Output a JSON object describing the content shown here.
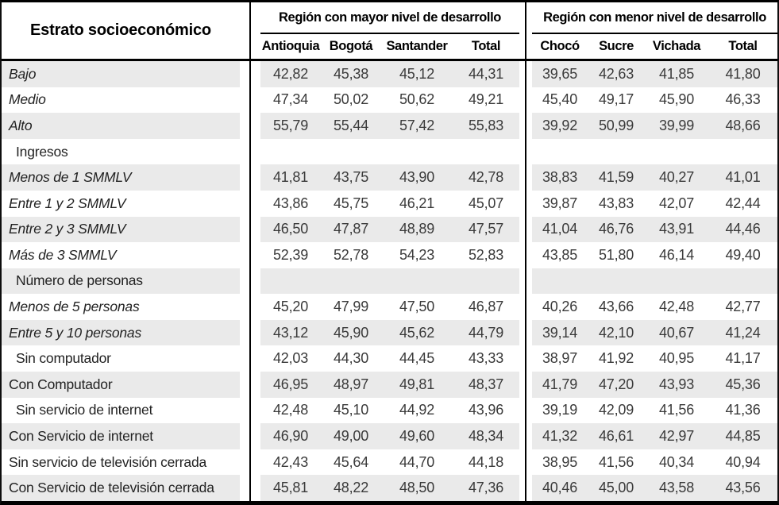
{
  "chart_data": {
    "type": "table",
    "corner_header": "Estrato socioeconómico",
    "groups": [
      {
        "label": "Región con mayor nivel de desarrollo",
        "columns": [
          "Antioquia",
          "Bogotá",
          "Santander",
          "Total"
        ]
      },
      {
        "label": "Región con menor nivel de desarrollo",
        "columns": [
          "Chocó",
          "Sucre",
          "Vichada",
          "Total"
        ]
      }
    ],
    "rows": [
      {
        "label": "Bajo",
        "italic": true,
        "section": false,
        "indent": false,
        "values": [
          "42,82",
          "45,38",
          "45,12",
          "44,31",
          "39,65",
          "42,63",
          "41,85",
          "41,80"
        ]
      },
      {
        "label": "Medio",
        "italic": true,
        "section": false,
        "indent": false,
        "values": [
          "47,34",
          "50,02",
          "50,62",
          "49,21",
          "45,40",
          "49,17",
          "45,90",
          "46,33"
        ]
      },
      {
        "label": "Alto",
        "italic": true,
        "section": false,
        "indent": false,
        "values": [
          "55,79",
          "55,44",
          "57,42",
          "55,83",
          "39,92",
          "50,99",
          "39,99",
          "48,66"
        ]
      },
      {
        "label": "Ingresos",
        "italic": false,
        "section": true,
        "indent": true,
        "values": []
      },
      {
        "label": "Menos de 1 SMMLV",
        "italic": true,
        "section": false,
        "indent": false,
        "values": [
          "41,81",
          "43,75",
          "43,90",
          "42,78",
          "38,83",
          "41,59",
          "40,27",
          "41,01"
        ]
      },
      {
        "label": "Entre 1 y 2 SMMLV",
        "italic": true,
        "section": false,
        "indent": false,
        "values": [
          "43,86",
          "45,75",
          "46,21",
          "45,07",
          "39,87",
          "43,83",
          "42,07",
          "42,44"
        ]
      },
      {
        "label": "Entre 2 y 3 SMMLV",
        "italic": true,
        "section": false,
        "indent": false,
        "values": [
          "46,50",
          "47,87",
          "48,89",
          "47,57",
          "41,04",
          "46,76",
          "43,91",
          "44,46"
        ]
      },
      {
        "label": "Más de 3 SMMLV",
        "italic": true,
        "section": false,
        "indent": false,
        "values": [
          "52,39",
          "52,78",
          "54,23",
          "52,83",
          "43,85",
          "51,80",
          "46,14",
          "49,40"
        ]
      },
      {
        "label": "Número de personas",
        "italic": false,
        "section": true,
        "indent": true,
        "values": []
      },
      {
        "label": "Menos de 5 personas",
        "italic": true,
        "section": false,
        "indent": false,
        "values": [
          "45,20",
          "47,99",
          "47,50",
          "46,87",
          "40,26",
          "43,66",
          "42,48",
          "42,77"
        ]
      },
      {
        "label": "Entre 5 y 10 personas",
        "italic": true,
        "section": false,
        "indent": false,
        "values": [
          "43,12",
          "45,90",
          "45,62",
          "44,79",
          "39,14",
          "42,10",
          "40,67",
          "41,24"
        ]
      },
      {
        "label": "Sin computador",
        "italic": false,
        "section": false,
        "indent": true,
        "values": [
          "42,03",
          "44,30",
          "44,45",
          "43,33",
          "38,97",
          "41,92",
          "40,95",
          "41,17"
        ]
      },
      {
        "label": "Con Computador",
        "italic": false,
        "section": false,
        "indent": false,
        "values": [
          "46,95",
          "48,97",
          "49,81",
          "48,37",
          "41,79",
          "47,20",
          "43,93",
          "45,36"
        ]
      },
      {
        "label": "Sin servicio de internet",
        "italic": false,
        "section": false,
        "indent": true,
        "values": [
          "42,48",
          "45,10",
          "44,92",
          "43,96",
          "39,19",
          "42,09",
          "41,56",
          "41,36"
        ]
      },
      {
        "label": "Con Servicio de internet",
        "italic": false,
        "section": false,
        "indent": false,
        "values": [
          "46,90",
          "49,00",
          "49,60",
          "48,34",
          "41,32",
          "46,61",
          "42,97",
          "44,85"
        ]
      },
      {
        "label": "Sin servicio de televisión cerrada",
        "italic": false,
        "section": false,
        "indent": false,
        "values": [
          "42,43",
          "45,64",
          "44,70",
          "44,18",
          "38,95",
          "41,56",
          "40,34",
          "40,94"
        ]
      },
      {
        "label": "Con Servicio de televisión cerrada",
        "italic": false,
        "section": false,
        "indent": false,
        "values": [
          "45,81",
          "48,22",
          "48,50",
          "47,36",
          "40,46",
          "45,00",
          "43,58",
          "43,56"
        ]
      }
    ],
    "colors": {
      "zebra_stripe": "#eaeaea",
      "border": "#000000",
      "text": "#3a3a3a"
    }
  }
}
